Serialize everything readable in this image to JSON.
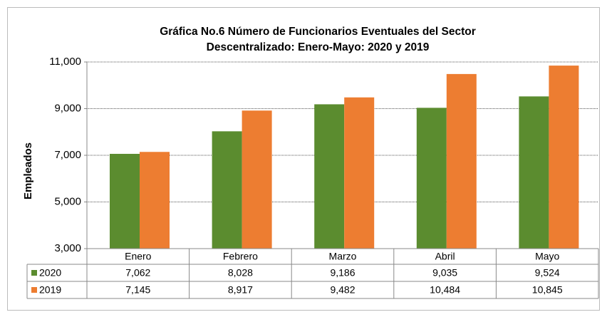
{
  "chart_data": {
    "type": "bar",
    "title": [
      "Gráfica No.6 Número de Funcionarios Eventuales del Sector",
      "Descentralizado: Enero-Mayo: 2020 y 2019"
    ],
    "y_label": "Empleados",
    "categories": [
      "Enero",
      "Febrero",
      "Marzo",
      "Abril",
      "Mayo"
    ],
    "series": [
      {
        "name": "2020",
        "color": "#5b8c2f",
        "values": [
          7062,
          8028,
          9186,
          9035,
          9524
        ],
        "value_labels": [
          "7,062",
          "8,028",
          "9,186",
          "9,035",
          "9,524"
        ]
      },
      {
        "name": "2019",
        "color": "#ed7d31",
        "values": [
          7145,
          8917,
          9482,
          10484,
          10845
        ],
        "value_labels": [
          "7,145",
          "8,917",
          "9,482",
          "10,484",
          "10,845"
        ]
      }
    ],
    "ylim": [
      3000,
      11000
    ],
    "yticks": [
      {
        "value": 3000,
        "label": "3,000"
      },
      {
        "value": 5000,
        "label": "5,000"
      },
      {
        "value": 7000,
        "label": "7,000"
      },
      {
        "value": 9000,
        "label": "9,000"
      },
      {
        "value": 11000,
        "label": "11,000"
      }
    ],
    "grid": true
  }
}
